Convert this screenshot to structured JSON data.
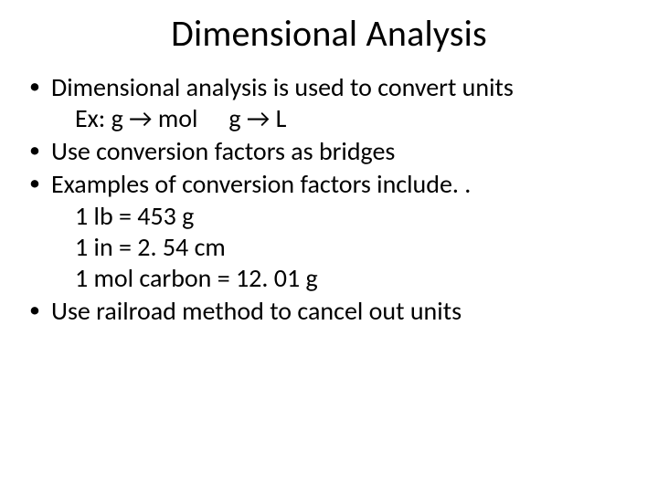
{
  "title": "Dimensional Analysis",
  "bullets": [
    {
      "text": "Dimensional analysis is used to convert units",
      "sub": [
        {
          "prefix": "Ex: ",
          "conv1_from": "g",
          "arrow": " → ",
          "conv1_to": "mol",
          "conv2_from": "g",
          "conv2_to": "L"
        }
      ]
    },
    {
      "text": "Use conversion factors as bridges"
    },
    {
      "text": "Examples of conversion factors include. .",
      "sub_plain": [
        "1 lb = 453 g",
        "1 in = 2. 54 cm",
        "1 mol carbon = 12. 01 g"
      ]
    },
    {
      "text": "Use railroad method to cancel out units"
    }
  ]
}
